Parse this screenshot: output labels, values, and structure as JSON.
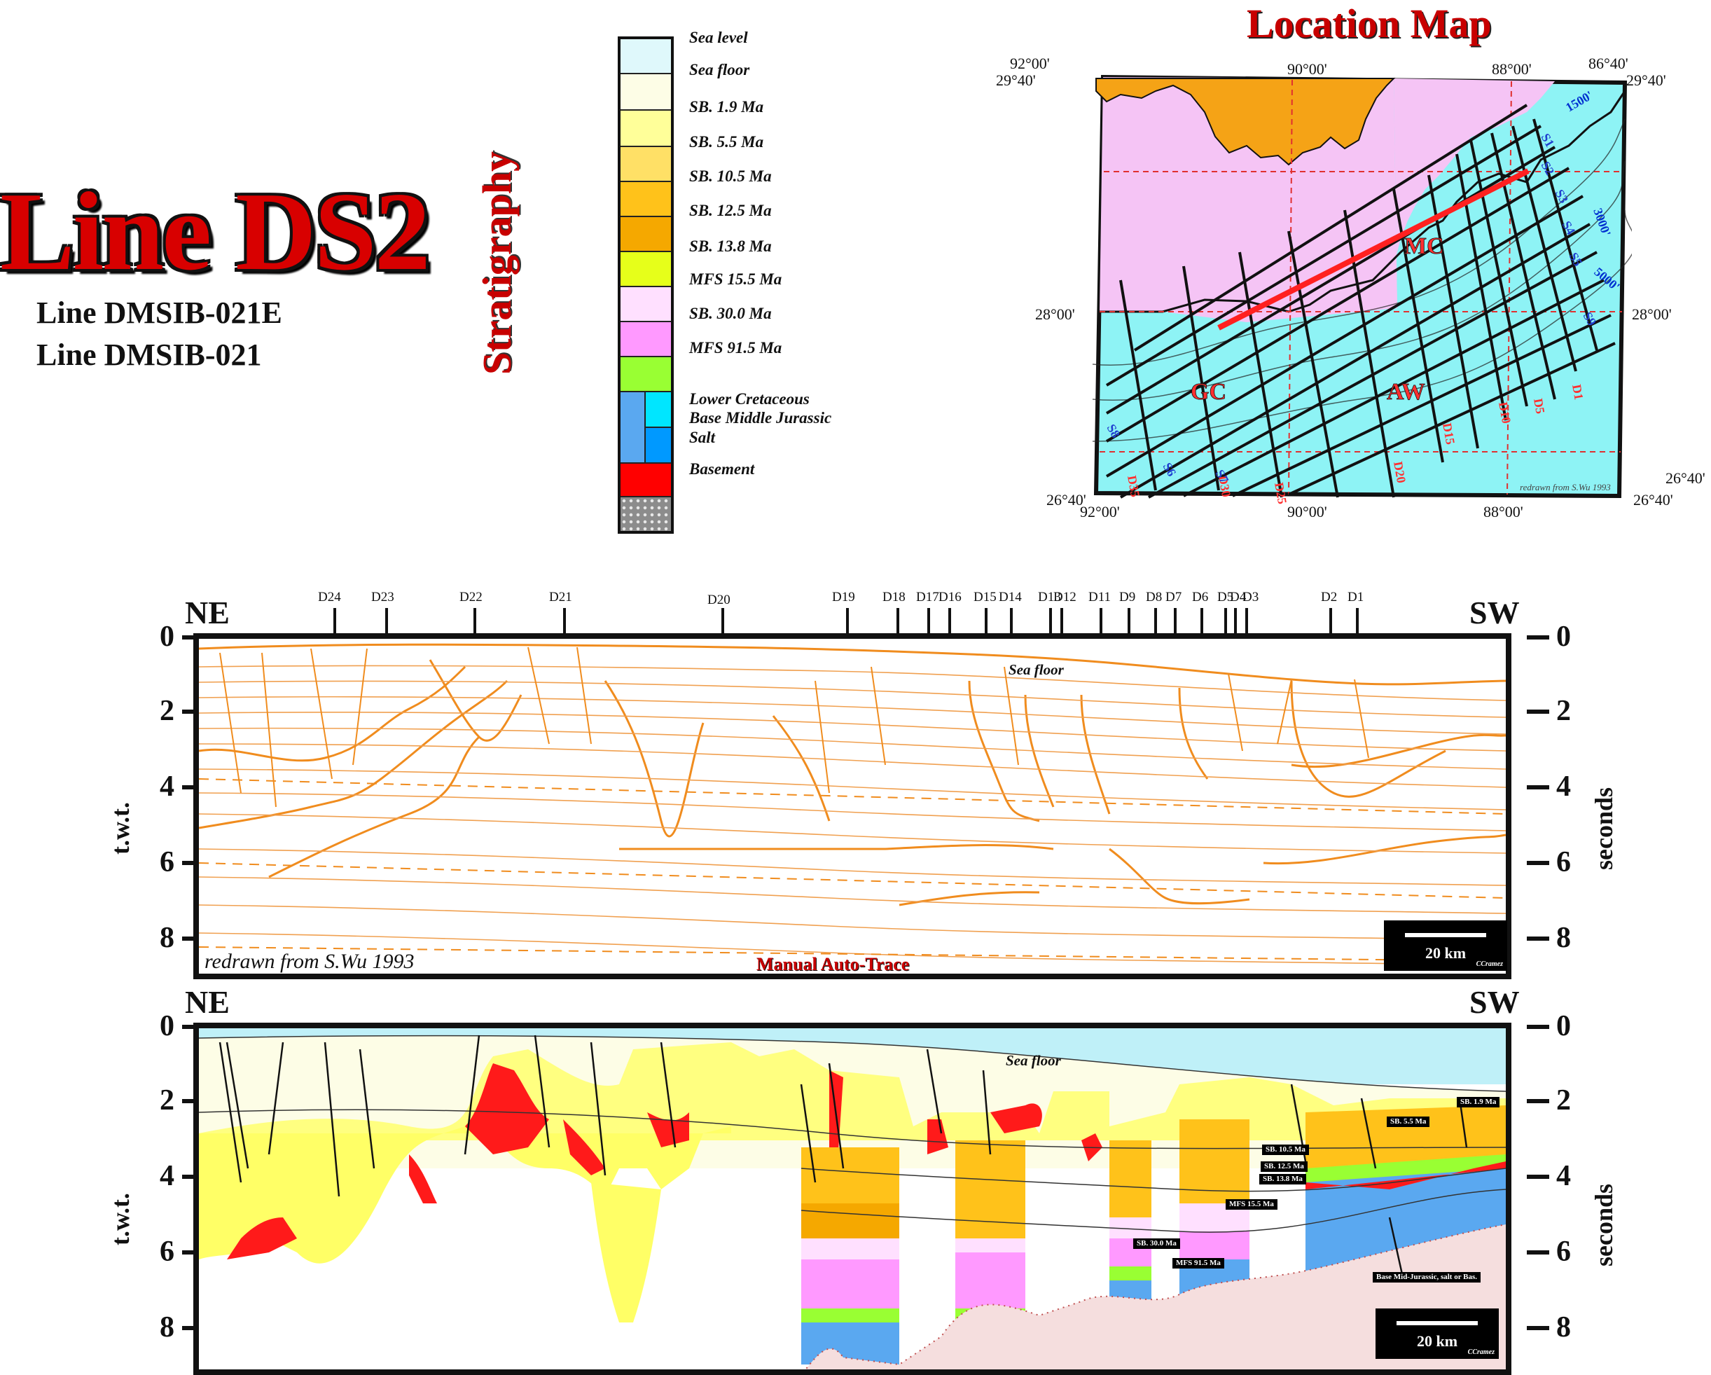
{
  "title": {
    "main": "Line DS2",
    "lines": [
      "Line DMSIB-021E",
      "Line DMSIB-021"
    ]
  },
  "stratigraphy": {
    "title": "Stratigraphy",
    "units": [
      {
        "label": "Sea level",
        "color": "#dff8fb"
      },
      {
        "label": "Sea floor",
        "color": "#fdfde6"
      },
      {
        "label": "SB. 1.9 Ma",
        "color": "#ffff99"
      },
      {
        "label": "SB. 5.5 Ma",
        "color": "#ffe066"
      },
      {
        "label": "SB. 10.5 Ma",
        "color": "#ffc21a"
      },
      {
        "label": "SB. 12.5 Ma",
        "color": "#f5a800"
      },
      {
        "label": "SB. 13.8 Ma",
        "color": "#e6ff1a"
      },
      {
        "label": "MFS 15.5 Ma",
        "color": "#ffe0ff"
      },
      {
        "label": "SB. 30.0 Ma",
        "color": "#ff99ff"
      },
      {
        "label": "MFS 91.5 Ma",
        "color": "#99ff33"
      },
      {
        "label": "Lower Cretaceous",
        "color": "#5aa8f0"
      },
      {
        "label": "Base Middle Jurassic",
        "color": "#00ccff"
      },
      {
        "label": "Salt",
        "color": "#ff0000"
      },
      {
        "label": "Basement",
        "color": "#999999"
      }
    ]
  },
  "location_map": {
    "title": "Location Map",
    "lon_labels": [
      "92°00'",
      "90°00'",
      "88°00'",
      "86°40'"
    ],
    "lat_labels": [
      "29°40'",
      "28°00'",
      "26°40'"
    ],
    "area_labels": [
      "MC",
      "GC",
      "AW"
    ],
    "credit": "redrawn from S.Wu 1993",
    "lines_d": [
      "D1",
      "D5",
      "D10",
      "D15",
      "D20",
      "D25",
      "D30",
      "D35"
    ],
    "lines_s": [
      "S1",
      "S2",
      "S3",
      "S4",
      "S5",
      "S6",
      "S7",
      "S8",
      "S9"
    ],
    "isobaths": [
      "1500'",
      "3000'",
      "5000'"
    ],
    "colors": {
      "land": "#f5c4f5",
      "coast": "#f5a316",
      "sea": "#8ef3f5",
      "trackline": "#111111",
      "selected_line": "#ff2020",
      "grid": "#e03030"
    }
  },
  "sections": {
    "direction_left": "NE",
    "direction_right": "SW",
    "well_labels": [
      "D24",
      "D23",
      "D22",
      "D21",
      "D20",
      "D19",
      "D18",
      "D17",
      "D16",
      "D15",
      "D14",
      "D13",
      "D12",
      "D11",
      "D9",
      "D8",
      "D7",
      "D6",
      "D5",
      "D4",
      "D3",
      "D2",
      "D1"
    ],
    "y_ticks": [
      "0",
      "2",
      "4",
      "6",
      "8"
    ],
    "y_label_left": "t.w.t.",
    "y_label_right": "seconds",
    "top_panel": {
      "sea_floor_label": "Sea floor",
      "credit": "redrawn from S.Wu 1993",
      "method": "Manual Auto-Trace",
      "scale": "20 km",
      "author": "CCramez"
    },
    "bottom_panel": {
      "sea_floor_label": "Sea floor",
      "scale": "20 km",
      "author": "CCramez",
      "unit_tags": [
        "SB. 1.9 Ma",
        "SB. 5.5 Ma",
        "SB. 10.5 Ma",
        "SB. 12.5 Ma",
        "SB. 13.8 Ma",
        "MFS 15.5 Ma",
        "SB. 30.0 Ma",
        "MFS 91.5 Ma",
        "Base Mid-Jurassic, salt or Bas."
      ]
    }
  }
}
